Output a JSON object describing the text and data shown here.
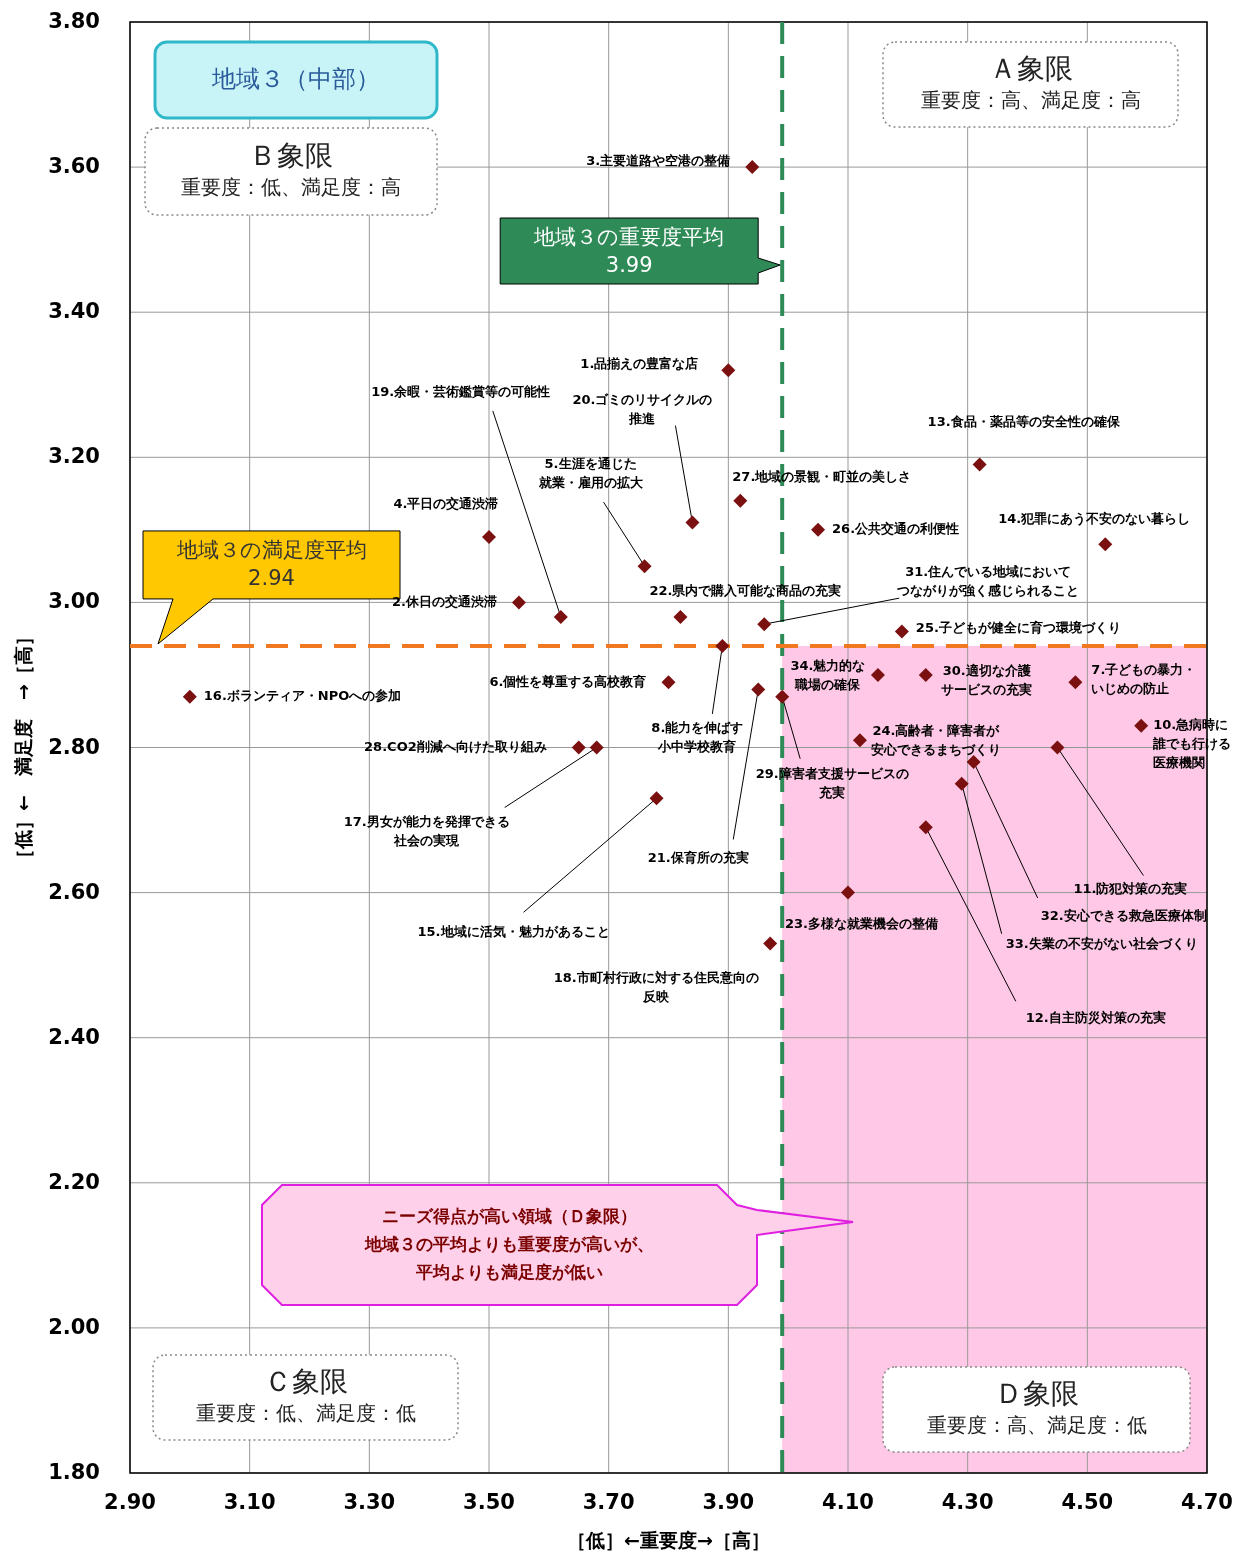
{
  "chart_data": {
    "type": "scatter",
    "xlabel": "［低］←重要度→［高］",
    "ylabel": "［低］←　満足度　→［高］",
    "xlim": [
      2.9,
      4.7
    ],
    "ylim": [
      1.8,
      3.8
    ],
    "xticks": [
      {
        "value": 2.9,
        "label": "2.90"
      },
      {
        "value": 3.1,
        "label": "3.10"
      },
      {
        "value": 3.3,
        "label": "3.30"
      },
      {
        "value": 3.5,
        "label": "3.50"
      },
      {
        "value": 3.7,
        "label": "3.70"
      },
      {
        "value": 3.9,
        "label": "3.90"
      },
      {
        "value": 4.1,
        "label": "4.10"
      },
      {
        "value": 4.3,
        "label": "4.30"
      },
      {
        "value": 4.5,
        "label": "4.50"
      },
      {
        "value": 4.7,
        "label": "4.70"
      }
    ],
    "yticks": [
      {
        "value": 1.8,
        "label": "1.80"
      },
      {
        "value": 2.0,
        "label": "2.00"
      },
      {
        "value": 2.2,
        "label": "2.20"
      },
      {
        "value": 2.4,
        "label": "2.40"
      },
      {
        "value": 2.6,
        "label": "2.60"
      },
      {
        "value": 2.8,
        "label": "2.80"
      },
      {
        "value": 3.0,
        "label": "3.00"
      },
      {
        "value": 3.2,
        "label": "3.20"
      },
      {
        "value": 3.4,
        "label": "3.40"
      },
      {
        "value": 3.6,
        "label": "3.60"
      },
      {
        "value": 3.8,
        "label": "3.80"
      }
    ],
    "grid": true,
    "marker": "diamond",
    "series": [
      {
        "color": "#7b1010",
        "x": [
          3.94,
          3.9,
          4.32,
          3.92,
          3.84,
          4.05,
          4.53,
          3.5,
          3.76,
          3.55,
          3.62,
          3.82,
          3.96,
          4.19,
          3.89,
          4.15,
          4.23,
          4.48,
          3.8,
          3.95,
          3.99,
          3.0,
          4.59,
          4.12,
          4.45,
          3.65,
          3.68,
          4.31,
          4.29,
          3.78,
          4.23,
          4.1,
          3.97
        ],
        "values": [
          3.6,
          3.32,
          3.19,
          3.14,
          3.11,
          3.1,
          3.08,
          3.09,
          3.05,
          3.0,
          2.98,
          2.98,
          2.97,
          2.96,
          2.94,
          2.9,
          2.9,
          2.89,
          2.89,
          2.88,
          2.87,
          2.87,
          2.83,
          2.81,
          2.8,
          2.8,
          2.8,
          2.78,
          2.75,
          2.73,
          2.69,
          2.6,
          2.53
        ]
      }
    ],
    "ref_lines": [
      {
        "axis": "x",
        "value": 3.99,
        "label": "地域３の重要度平均3.99",
        "color": "#2e8b57",
        "line_style": "dashed"
      },
      {
        "axis": "y",
        "value": 2.94,
        "label": "地域３の満足度平均2.94",
        "color": "#f07820",
        "line_style": "dashed"
      }
    ],
    "bands": [
      {
        "axis": "x",
        "from": 3.99,
        "to": 4.7,
        "color": "#ffc8e6"
      }
    ],
    "annotations": [
      "地域３（中部）",
      "Ａ象限",
      "重要度：高、満足度：高",
      "Ｂ象限",
      "重要度：低、満足度：高",
      "Ｃ象限",
      "重要度：低、満足度：低",
      "Ｄ象限",
      "重要度：高、満足度：低",
      "ニーズ得点が高い領域（Ｄ象限）地域３の平均よりも重要度が高いが、平均よりも満足度が低い",
      {
        "text": "3.主要道路や空港の整備",
        "x": 3.94,
        "y": 3.6
      },
      {
        "text": "1.品揃えの豊富な店",
        "x": 3.9,
        "y": 3.32
      },
      {
        "text": "13.食品・薬品等の安全性の確保",
        "x": 4.32,
        "y": 3.19
      },
      {
        "text": "27.地域の景観・町並の美しさ",
        "x": 3.92,
        "y": 3.14
      },
      {
        "text": "20.ゴミのリサイクルの推進",
        "x": 3.84,
        "y": 3.11
      },
      {
        "text": "26.公共交通の利便性",
        "x": 4.05,
        "y": 3.1
      },
      {
        "text": "14.犯罪にあう不安のない暮らし",
        "x": 4.53,
        "y": 3.08
      },
      {
        "text": "4.平日の交通渋滞",
        "x": 3.5,
        "y": 3.09
      },
      {
        "text": "5.生涯を通じた就業・雇用の拡大",
        "x": 3.76,
        "y": 3.05
      },
      {
        "text": "2.休日の交通渋滞",
        "x": 3.55,
        "y": 3.0
      },
      {
        "text": "19.余暇・芸術鑑賞等の可能性",
        "x": 3.62,
        "y": 2.98
      },
      {
        "text": "22.県内で購入可能な商品の充実",
        "x": 3.82,
        "y": 2.98
      },
      {
        "text": "31.住んでいる地域においてつながりが強く感じられること",
        "x": 3.96,
        "y": 2.97
      },
      {
        "text": "25.子どもが健全に育つ環境づくり",
        "x": 4.19,
        "y": 2.96
      },
      {
        "text": "8.能力を伸ばす小中学校教育",
        "x": 3.89,
        "y": 2.94
      },
      {
        "text": "34.魅力的な職場の確保",
        "x": 4.15,
        "y": 2.9
      },
      {
        "text": "30.適切な介護サービスの充実",
        "x": 4.23,
        "y": 2.9
      },
      {
        "text": "7.子どもの暴力・いじめの防止",
        "x": 4.48,
        "y": 2.89
      },
      {
        "text": "6.個性を尊重する高校教育",
        "x": 3.8,
        "y": 2.89
      },
      {
        "text": "21.保育所の充実",
        "x": 3.95,
        "y": 2.88
      },
      {
        "text": "29.障害者支援サービスの充実",
        "x": 3.99,
        "y": 2.87
      },
      {
        "text": "16.ボランティア・NPOへの参加",
        "x": 3.0,
        "y": 2.87
      },
      {
        "text": "10.急病時に誰でも行ける医療機関",
        "x": 4.59,
        "y": 2.83
      },
      {
        "text": "24.高齢者・障害者が安心できるまちづくり",
        "x": 4.12,
        "y": 2.81
      },
      {
        "text": "11.防犯対策の充実",
        "x": 4.45,
        "y": 2.8
      },
      {
        "text": "28.CO2削減へ向けた取り組み",
        "x": 3.65,
        "y": 2.8
      },
      {
        "text": "17.男女が能力を発揮できる社会の実現",
        "x": 3.68,
        "y": 2.8
      },
      {
        "text": "32.安心できる救急医療体制",
        "x": 4.31,
        "y": 2.78
      },
      {
        "text": "33.失業の不安がない社会づくり",
        "x": 4.29,
        "y": 2.75
      },
      {
        "text": "15.地域に活気・魅力があること",
        "x": 3.78,
        "y": 2.73
      },
      {
        "text": "12.自主防災対策の充実",
        "x": 4.23,
        "y": 2.69
      },
      {
        "text": "23.多様な就業機会の整備",
        "x": 4.1,
        "y": 2.6
      },
      {
        "text": "18.市町村行政に対する住民意向の反映",
        "x": 3.97,
        "y": 2.53
      }
    ]
  }
}
